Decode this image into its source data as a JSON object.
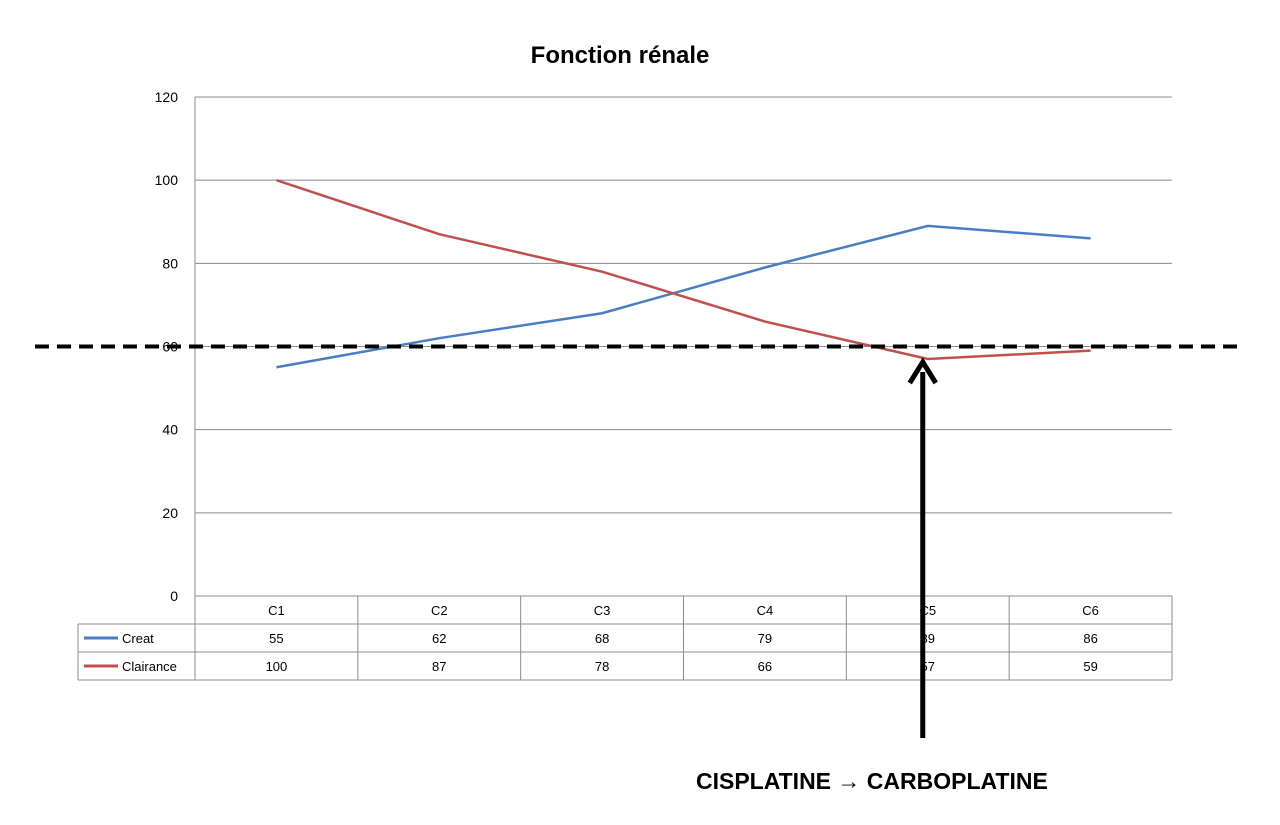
{
  "chart_data": {
    "type": "line",
    "title": "Fonction rénale",
    "xlabel": "",
    "ylabel": "",
    "categories": [
      "C1",
      "C2",
      "C3",
      "C4",
      "C5",
      "C6"
    ],
    "series": [
      {
        "name": "Creat",
        "values": [
          55,
          62,
          68,
          79,
          89,
          86
        ],
        "color": "#4a7ec2"
      },
      {
        "name": "Clairance",
        "values": [
          100,
          87,
          78,
          66,
          57,
          59
        ],
        "color": "#c0504d"
      }
    ],
    "ylim": [
      0,
      120
    ],
    "yticks": [
      0,
      20,
      40,
      60,
      80,
      100,
      120
    ],
    "grid": true,
    "legend": "data-table",
    "reference_line": {
      "value": 60,
      "style": "dashed",
      "color": "#000000"
    },
    "annotation": {
      "text": "CISPLATINE → CARBOPLATINE",
      "arrow_points_to": "C5"
    }
  }
}
